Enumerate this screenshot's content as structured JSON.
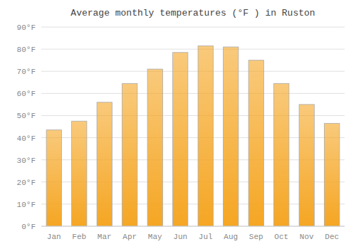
{
  "chart_data": {
    "type": "bar",
    "title": "Average monthly temperatures (°F ) in Ruston",
    "categories": [
      "Jan",
      "Feb",
      "Mar",
      "Apr",
      "May",
      "Jun",
      "Jul",
      "Aug",
      "Sep",
      "Oct",
      "Nov",
      "Dec"
    ],
    "values": [
      43.5,
      47.5,
      56.0,
      64.5,
      71.0,
      78.5,
      81.5,
      81.0,
      75.0,
      64.5,
      55.0,
      46.5
    ],
    "color": "#F5A623",
    "ylim": [
      0,
      90
    ],
    "yticks": [
      {
        "value": 0,
        "label": "0°F"
      },
      {
        "value": 10,
        "label": "10°F"
      },
      {
        "value": 20,
        "label": "20°F"
      },
      {
        "value": 30,
        "label": "30°F"
      },
      {
        "value": 40,
        "label": "40°F"
      },
      {
        "value": 50,
        "label": "50°F"
      },
      {
        "value": 60,
        "label": "60°F"
      },
      {
        "value": 70,
        "label": "70°F"
      },
      {
        "value": 80,
        "label": "80°F"
      },
      {
        "value": 90,
        "label": "90°F"
      }
    ],
    "grid": true
  }
}
